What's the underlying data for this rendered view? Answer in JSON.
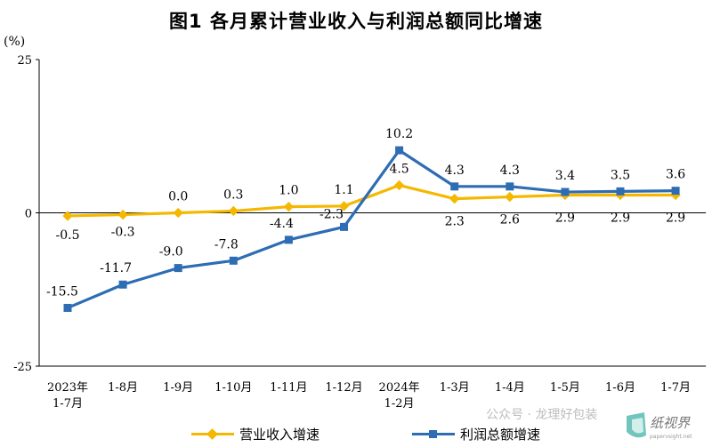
{
  "title": "图1  各月累计营业收入与利润总额同比增速",
  "unit_label": "(%)",
  "watermark": "公众号 · 龙理好包装",
  "logo_text": "纸视界",
  "logo_subtext": "papervsight.net",
  "colors": {
    "revenue": "#F5B800",
    "profit": "#2E6DB4",
    "axis": "#000000"
  },
  "legend": {
    "revenue": "营业收入增速",
    "profit": "利润总额增速"
  },
  "chart_data": {
    "type": "line",
    "title": "图1  各月累计营业收入与利润总额同比增速",
    "ylabel": "(%)",
    "ylim": [
      -25,
      25
    ],
    "yticks": [
      "25",
      "0",
      "-25"
    ],
    "ytick_values": [
      25,
      0,
      -25
    ],
    "categories": [
      [
        "2023年",
        "1-7月"
      ],
      [
        "1-8月"
      ],
      [
        "1-9月"
      ],
      [
        "1-10月"
      ],
      [
        "1-11月"
      ],
      [
        "1-12月"
      ],
      [
        "2024年",
        "1-2月"
      ],
      [
        "1-3月"
      ],
      [
        "1-4月"
      ],
      [
        "1-5月"
      ],
      [
        "1-6月"
      ],
      [
        "1-7月"
      ]
    ],
    "series": [
      {
        "name": "营业收入增速",
        "color": "#F5B800",
        "marker": "diamond",
        "values": [
          -0.5,
          -0.3,
          0.0,
          0.3,
          1.0,
          1.1,
          4.5,
          2.3,
          2.6,
          2.9,
          2.9,
          2.9
        ],
        "labels": [
          "-0.5",
          "-0.3",
          "0.0",
          "0.3",
          "1.0",
          "1.1",
          "4.5",
          "2.3",
          "2.6",
          "2.9",
          "2.9",
          "2.9"
        ]
      },
      {
        "name": "利润总额增速",
        "color": "#2E6DB4",
        "marker": "square",
        "values": [
          -15.5,
          -11.7,
          -9.0,
          -7.8,
          -4.4,
          -2.3,
          10.2,
          4.3,
          4.3,
          3.4,
          3.5,
          3.6
        ],
        "labels": [
          "-15.5",
          "-11.7",
          "-9.0",
          "-7.8",
          "-4.4",
          "-2.3",
          "10.2",
          "4.3",
          "4.3",
          "3.4",
          "3.5",
          "3.6"
        ]
      }
    ],
    "grid": false,
    "legend_position": "bottom"
  }
}
